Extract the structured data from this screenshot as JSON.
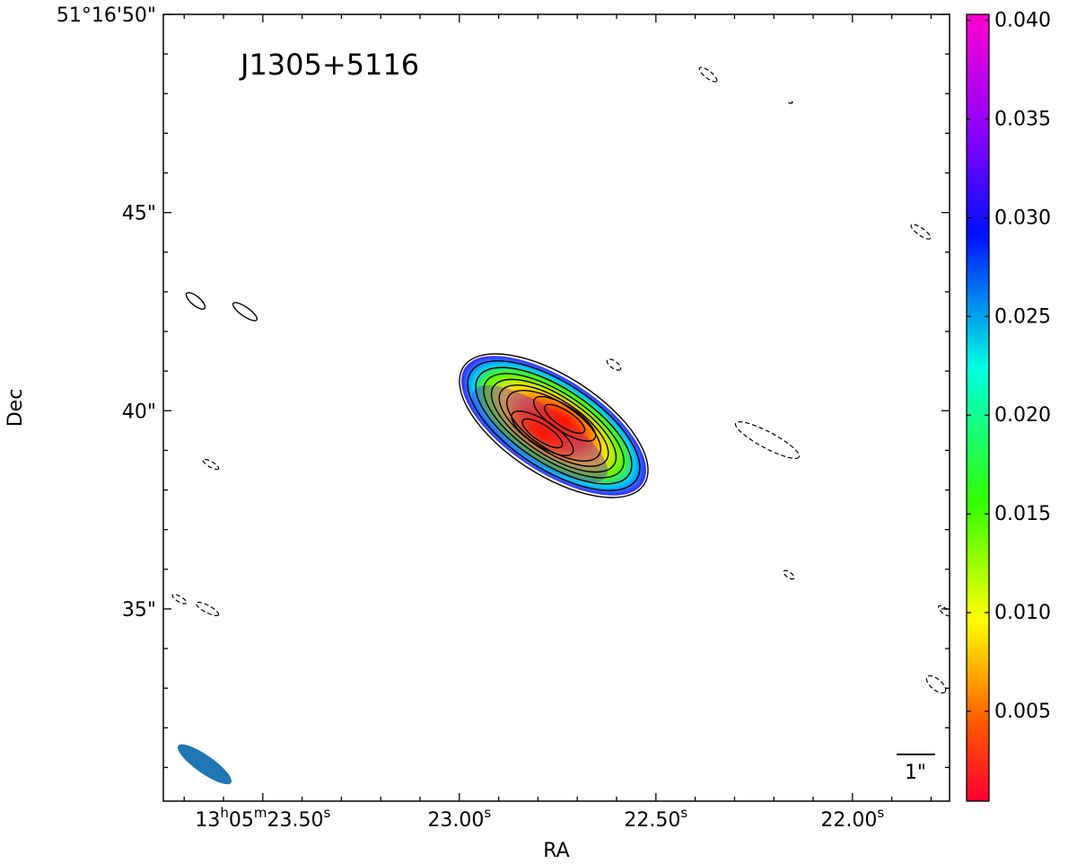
{
  "chart_data": {
    "type": "image",
    "title": "J1305+5116",
    "xlabel": "RA",
    "ylabel": "Dec",
    "xlim": [
      23.753,
      21.753
    ],
    "ylim": [
      30.15,
      50
    ],
    "xticks": [
      {
        "value": 23.5,
        "label": "13h05m23.50s"
      },
      {
        "value": 23,
        "label": "23.00s"
      },
      {
        "value": 22.5,
        "label": "22.50s"
      },
      {
        "value": 22,
        "label": "22.00s"
      }
    ],
    "xminorticks": [
      23.7,
      23.6,
      23.4,
      23.3,
      23.2,
      23.1,
      22.9,
      22.8,
      22.7,
      22.6,
      22.4,
      22.3,
      22.2,
      22.1,
      21.9,
      21.8
    ],
    "yticks": [
      {
        "value": 35,
        "label": "35\""
      },
      {
        "value": 40,
        "label": "40\""
      },
      {
        "value": 45,
        "label": "45\""
      },
      {
        "value": 50,
        "label": "51°16'50\""
      }
    ],
    "yminorticks": [
      31,
      32,
      33,
      34,
      36,
      37,
      38,
      39,
      41,
      42,
      43,
      44,
      46,
      47,
      48,
      49
    ],
    "colorbar": {
      "lim": [
        0.00045,
        0.0403
      ],
      "ticks": [
        0.005,
        {
          "value": 0.01,
          "label": "0.010"
        },
        0.015,
        {
          "value": 0.02,
          "label": "0.020"
        },
        0.025,
        {
          "value": 0.03,
          "label": "0.030"
        },
        0.035,
        {
          "value": 0.04,
          "label": "0.040"
        }
      ]
    },
    "scalebar_label": "1\""
  }
}
